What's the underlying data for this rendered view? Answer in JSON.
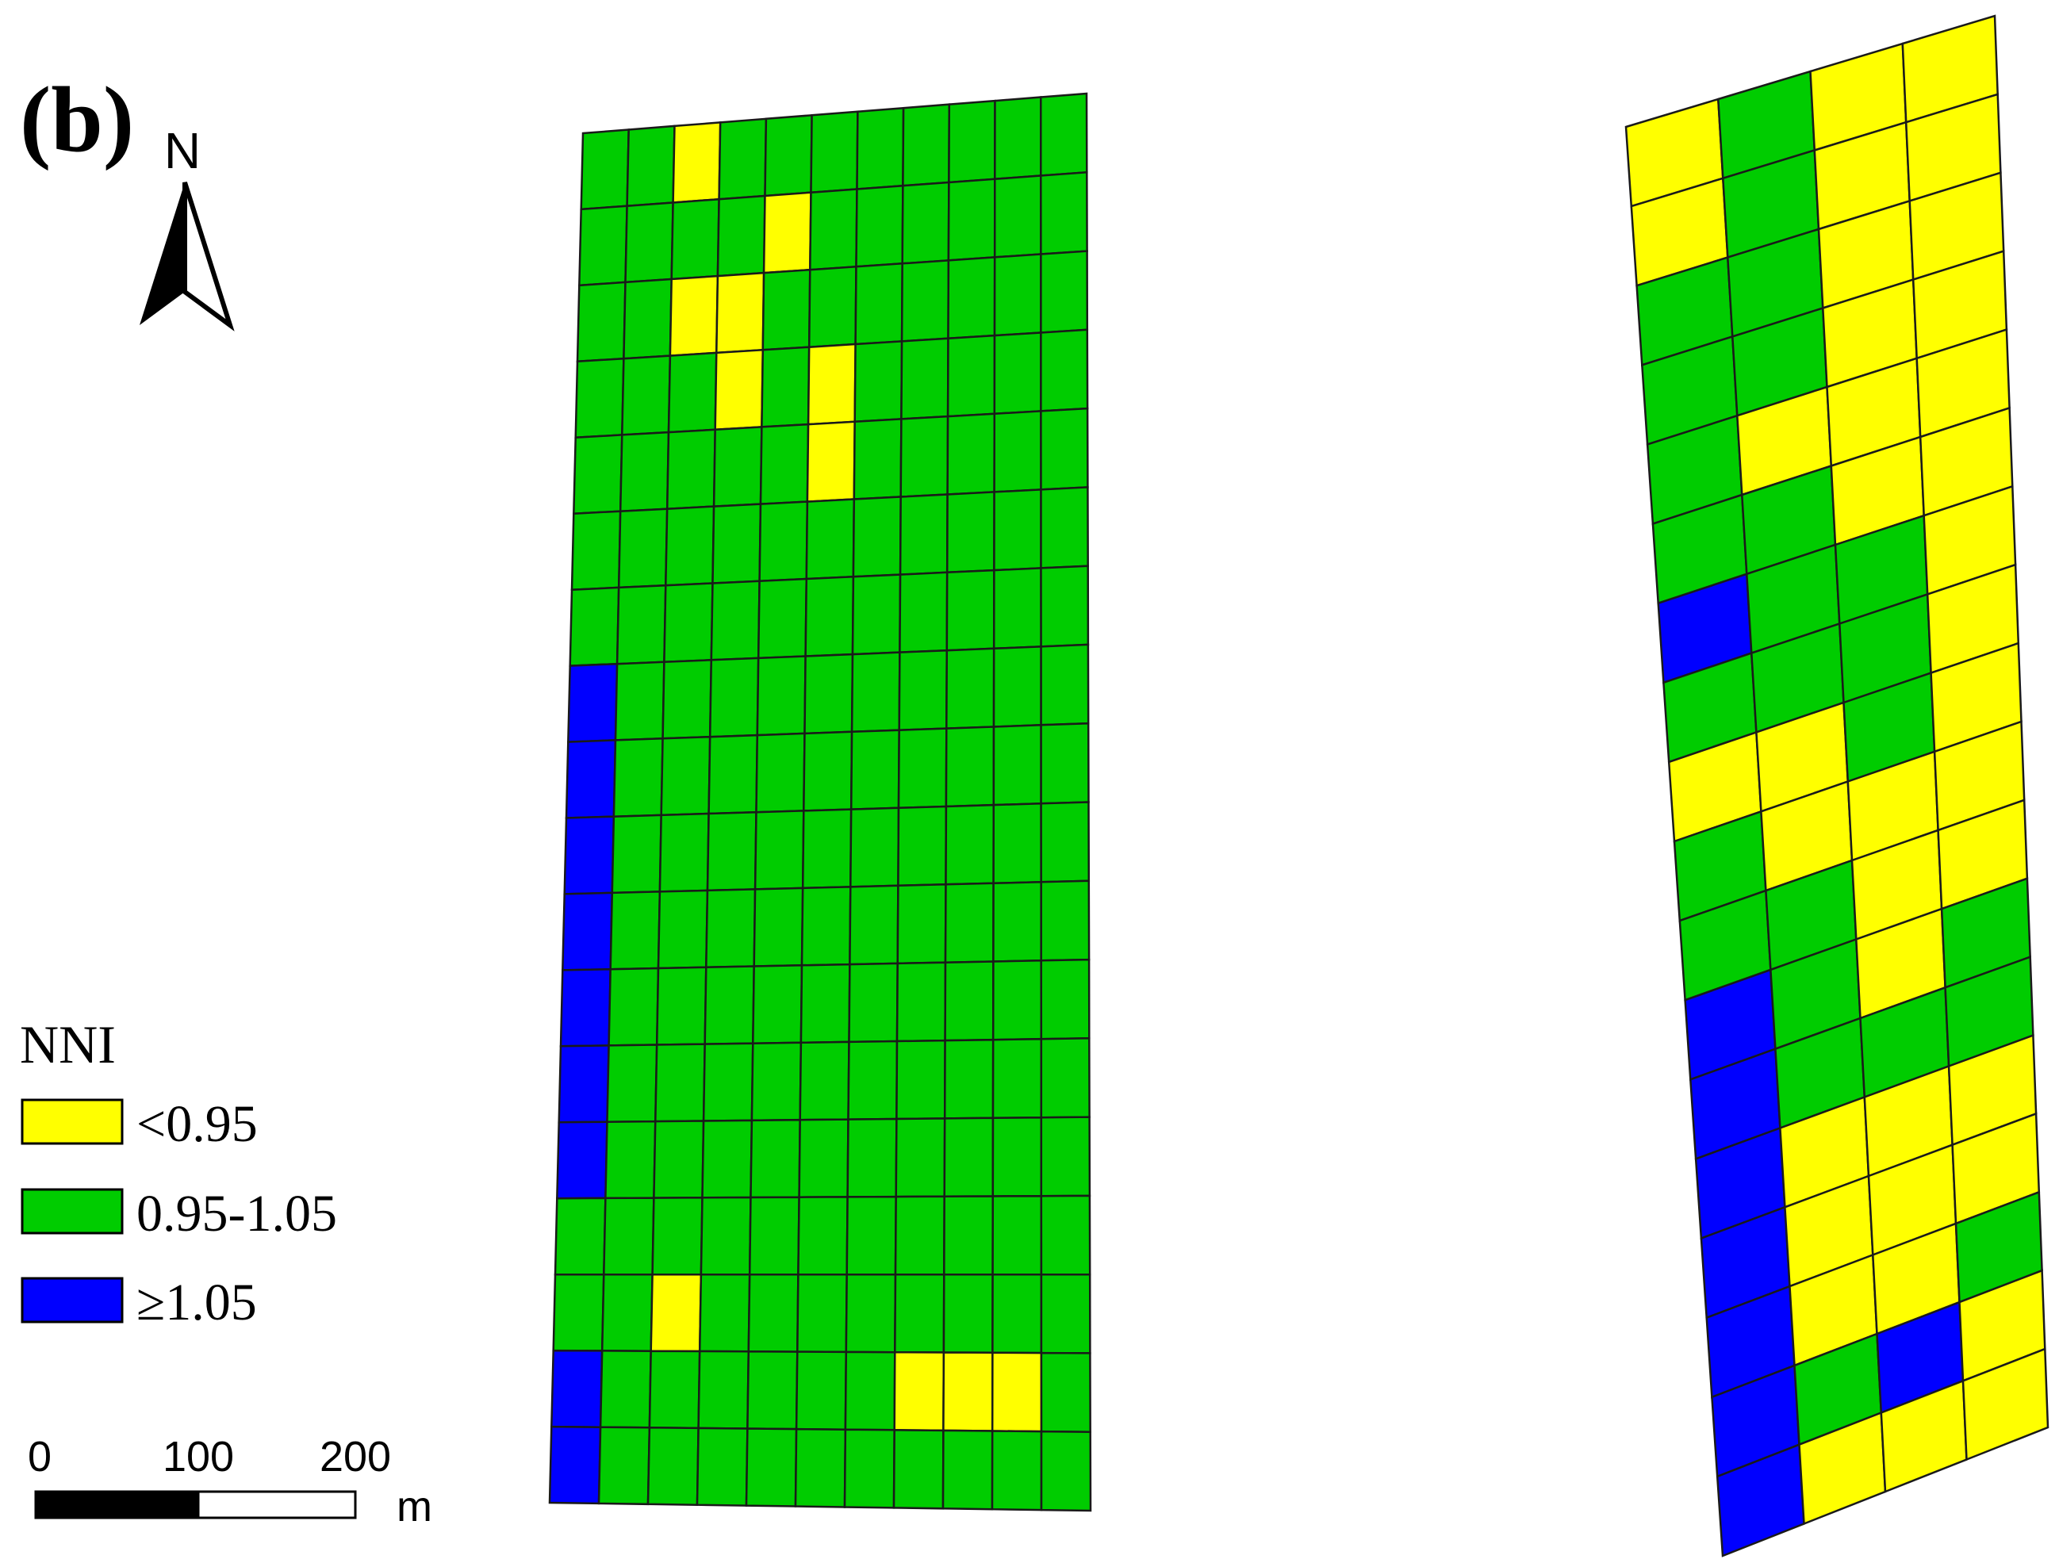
{
  "panel_label": "(b)",
  "north_arrow": {
    "label": "N",
    "icon": "north-arrow-icon"
  },
  "legend": {
    "title": "NNI",
    "items": [
      {
        "label": "<0.95",
        "color": "#ffff00",
        "class": "low"
      },
      {
        "label": "0.95-1.05",
        "color": "#00cc00",
        "class": "mid"
      },
      {
        "label": "≥1.05",
        "color": "#0000ff",
        "class": "high"
      }
    ]
  },
  "scale_bar": {
    "labels": [
      "0",
      "100",
      "200"
    ],
    "unit": "m"
  },
  "colors": {
    "low": "#ffff00",
    "mid": "#00cc00",
    "high": "#0000ff",
    "outline": "#1a1a1a"
  },
  "map_data": {
    "fields": [
      {
        "name": "west-field",
        "default_class": "mid",
        "columns": 11,
        "rows": 18,
        "cells_low": [
          [
            0,
            2
          ],
          [
            1,
            4
          ],
          [
            2,
            2
          ],
          [
            2,
            3
          ],
          [
            3,
            5
          ],
          [
            4,
            5
          ],
          [
            3,
            3
          ],
          [
            15,
            2
          ],
          [
            16,
            7
          ],
          [
            16,
            8
          ],
          [
            16,
            9
          ]
        ],
        "cells_high": [
          [
            7,
            0
          ],
          [
            8,
            0
          ],
          [
            9,
            0
          ],
          [
            10,
            0
          ],
          [
            11,
            0
          ],
          [
            12,
            0
          ],
          [
            13,
            0
          ],
          [
            16,
            0
          ],
          [
            17,
            0
          ]
        ]
      },
      {
        "name": "east-field",
        "default_class": "low",
        "columns": 4,
        "rows": 18,
        "cells_mid": [
          [
            0,
            1
          ],
          [
            1,
            1
          ],
          [
            2,
            0
          ],
          [
            2,
            1
          ],
          [
            3,
            0
          ],
          [
            3,
            1
          ],
          [
            4,
            0
          ],
          [
            5,
            0
          ],
          [
            5,
            1
          ],
          [
            6,
            1
          ],
          [
            6,
            2
          ],
          [
            7,
            0
          ],
          [
            7,
            1
          ],
          [
            7,
            2
          ],
          [
            8,
            2
          ],
          [
            9,
            0
          ],
          [
            10,
            0
          ],
          [
            10,
            1
          ],
          [
            11,
            1
          ],
          [
            11,
            3
          ],
          [
            12,
            1
          ],
          [
            12,
            2
          ],
          [
            12,
            3
          ],
          [
            15,
            3
          ],
          [
            16,
            1
          ],
          [
            16,
            2
          ]
        ],
        "cells_high": [
          [
            6,
            0
          ],
          [
            11,
            0
          ],
          [
            12,
            0
          ],
          [
            13,
            0
          ],
          [
            14,
            0
          ],
          [
            15,
            0
          ],
          [
            16,
            0
          ],
          [
            17,
            0
          ],
          [
            16,
            2
          ]
        ]
      }
    ]
  }
}
